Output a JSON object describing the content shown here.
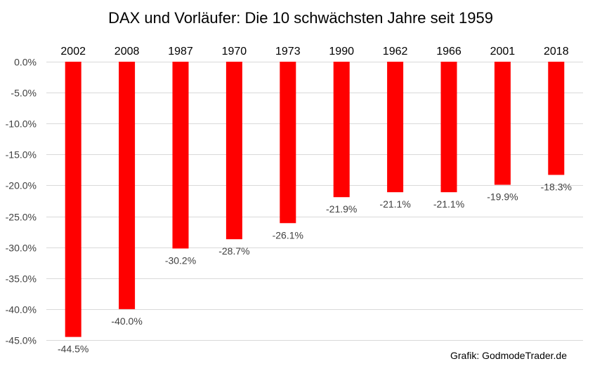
{
  "chart_data": {
    "type": "bar",
    "title": "DAX und Vorläufer: Die 10 schwächsten Jahre seit 1959",
    "categories": [
      "2002",
      "2008",
      "1987",
      "1970",
      "1973",
      "1990",
      "1962",
      "1966",
      "2001",
      "2018"
    ],
    "values": [
      -44.5,
      -40.0,
      -30.2,
      -28.7,
      -26.1,
      -21.9,
      -21.1,
      -21.1,
      -19.9,
      -18.3
    ],
    "data_labels": [
      "-44.5%",
      "-40.0%",
      "-30.2%",
      "-28.7%",
      "-26.1%",
      "-21.9%",
      "-21.1%",
      "-21.1%",
      "-19.9%",
      "-18.3%"
    ],
    "ylim": [
      -45,
      0
    ],
    "yticks": [
      0,
      -5,
      -10,
      -15,
      -20,
      -25,
      -30,
      -35,
      -40,
      -45
    ],
    "ytick_labels": [
      "0.0%",
      "-5.0%",
      "-10.0%",
      "-15.0%",
      "-20.0%",
      "-25.0%",
      "-30.0%",
      "-35.0%",
      "-40.0%",
      "-45.0%"
    ],
    "xlabel": "",
    "ylabel": "",
    "grid": true,
    "legend": "none",
    "bar_color": "#ff0000",
    "source": "Grafik: GodmodeTrader.de"
  }
}
